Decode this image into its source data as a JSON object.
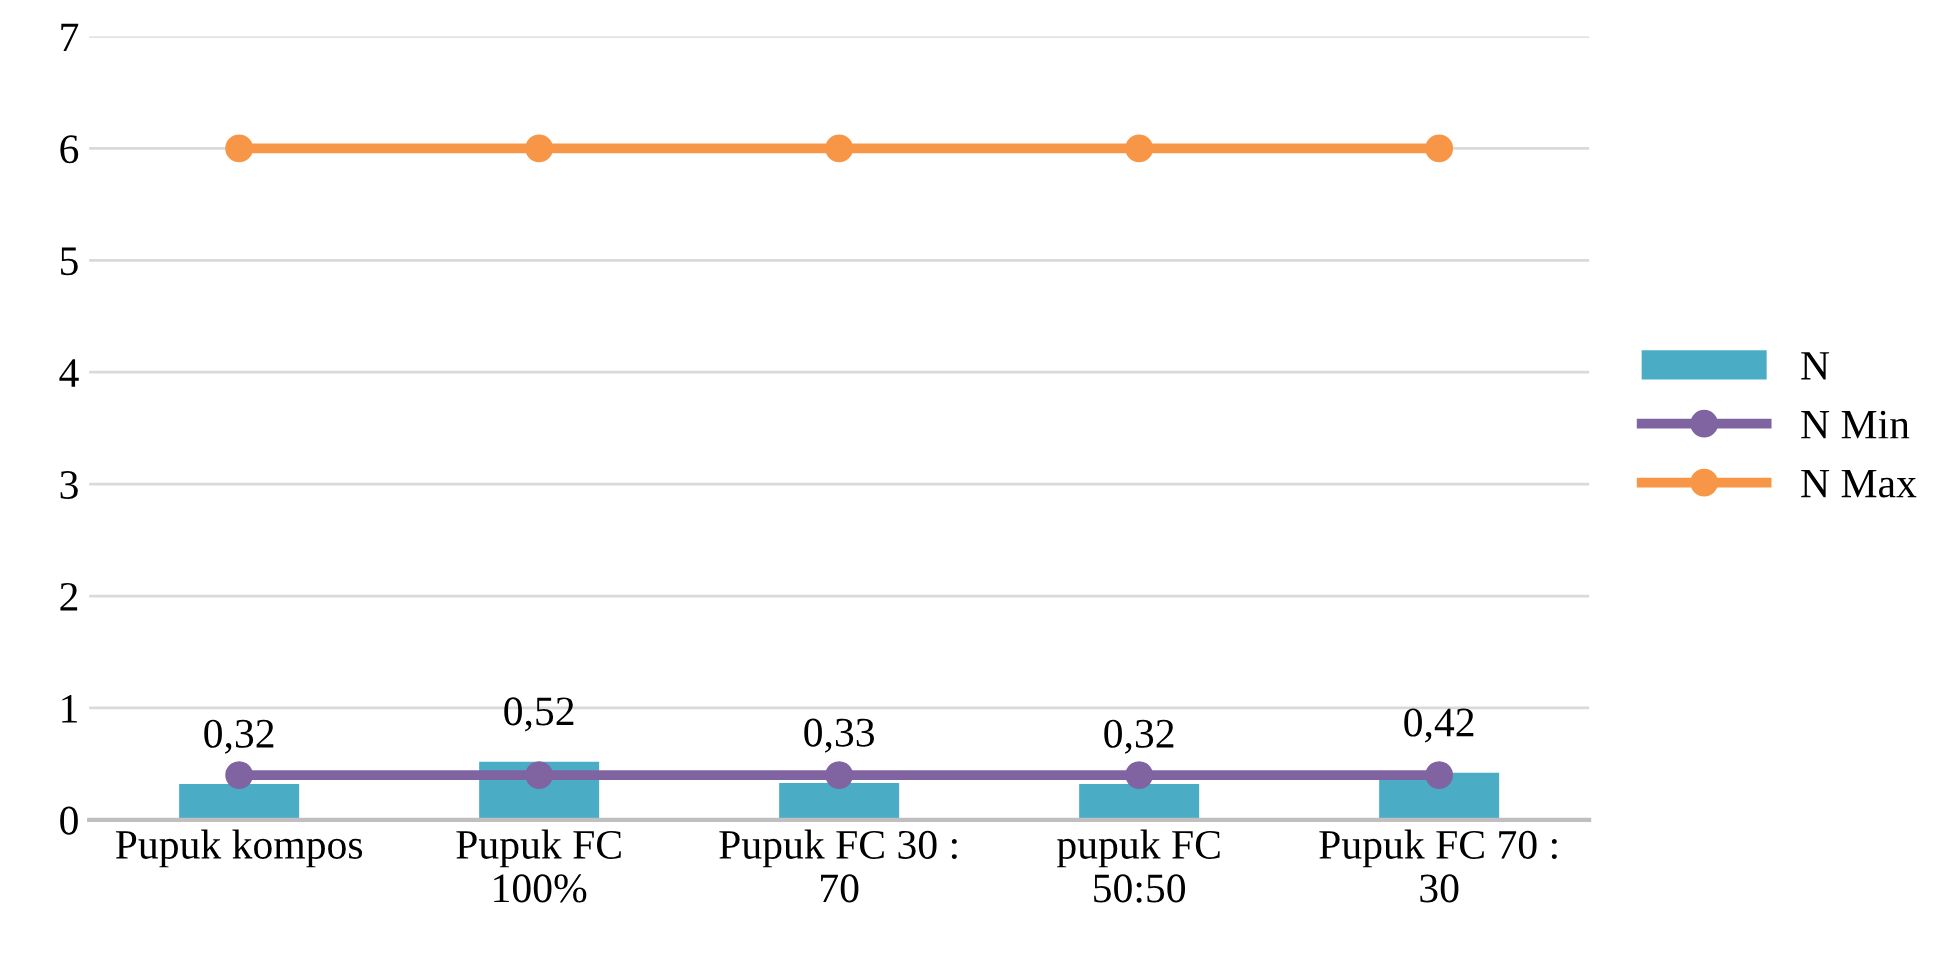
{
  "chart_data": {
    "type": "bar",
    "categories": [
      "Pupuk kompos",
      "Pupuk FC\n100%",
      "Pupuk FC 30 :\n70",
      "pupuk FC\n50:50",
      "Pupuk FC 70 :\n30"
    ],
    "series": [
      {
        "name": "N",
        "color": "#4bacc6",
        "values": [
          0.32,
          0.52,
          0.33,
          0.32,
          0.42
        ],
        "value_labels": [
          "0,32",
          "0,52",
          "0,33",
          "0,32",
          "0,42"
        ]
      },
      {
        "name": "N Min",
        "type": "line",
        "color": "#8064a2",
        "values": [
          0.4,
          0.4,
          0.4,
          0.4,
          0.4
        ]
      },
      {
        "name": "N Max",
        "type": "line",
        "color": "#f79646",
        "values": [
          6,
          6,
          6,
          6,
          6
        ]
      }
    ],
    "ylim": [
      0,
      7
    ],
    "yticks": [
      0,
      1,
      2,
      3,
      4,
      5,
      6,
      7
    ],
    "grid": "y",
    "legend": "right",
    "marker": "circle",
    "line_style": "solid"
  }
}
